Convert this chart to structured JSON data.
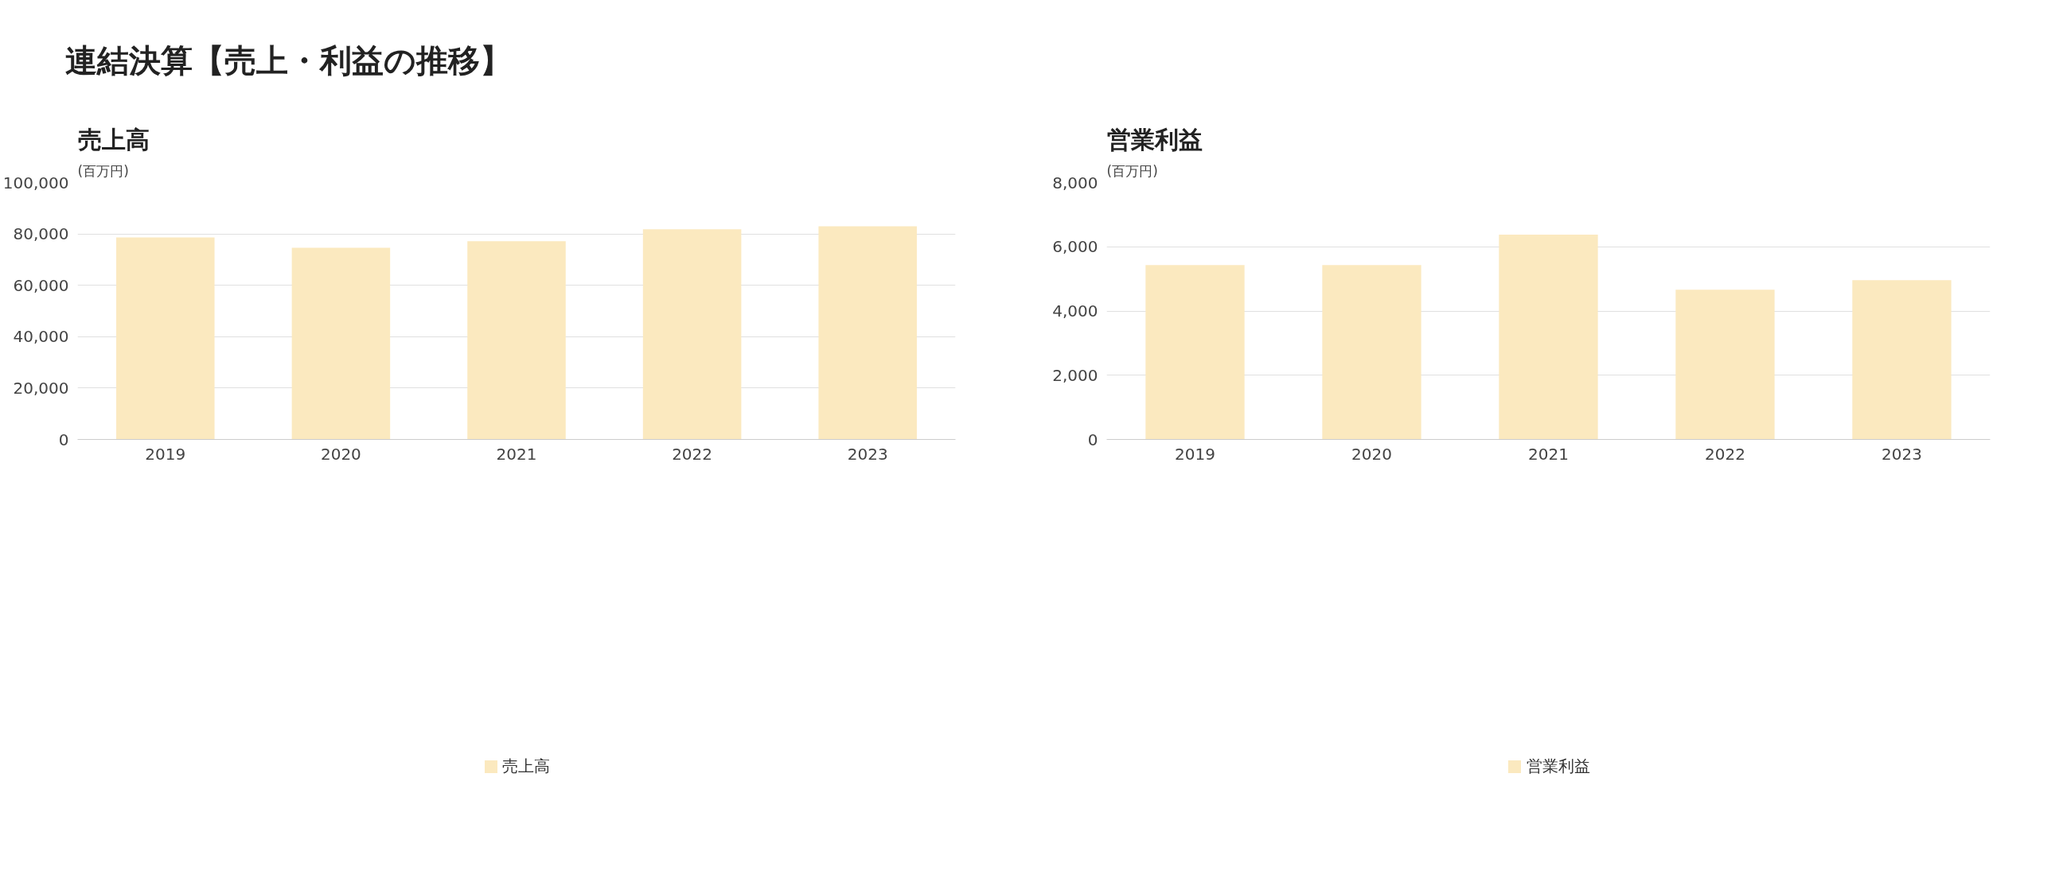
{
  "chart_data": [
    {
      "type": "other",
      "title": "連結決算【売上・利益の推移】"
    },
    {
      "type": "bar",
      "title": "売上高",
      "ylabel": "(百万円)",
      "categories": [
        "2019",
        "2020",
        "2021",
        "2022",
        "2023"
      ],
      "series": [
        {
          "name": "売上高",
          "color": "#fbe9bf",
          "values": [
            78600,
            74600,
            77200,
            81800,
            83000
          ]
        }
      ],
      "ylim": [
        0,
        100000
      ],
      "yticks": [
        {
          "value": 0,
          "label": "0"
        },
        {
          "value": 20000,
          "label": "20,000"
        },
        {
          "value": 40000,
          "label": "40,000"
        },
        {
          "value": 60000,
          "label": "60,000"
        },
        {
          "value": 80000,
          "label": "80,000"
        },
        {
          "value": 100000,
          "label": "100,000"
        }
      ],
      "grid": "y",
      "legend": "bottom"
    },
    {
      "type": "bar",
      "title": "営業利益",
      "ylabel": "(百万円)",
      "categories": [
        "2019",
        "2020",
        "2021",
        "2022",
        "2023"
      ],
      "series": [
        {
          "name": "営業利益",
          "color": "#fbe9bf",
          "values": [
            5430,
            5430,
            6380,
            4660,
            4960
          ]
        }
      ],
      "ylim": [
        0,
        8000
      ],
      "yticks": [
        {
          "value": 0,
          "label": "0"
        },
        {
          "value": 2000,
          "label": "2,000"
        },
        {
          "value": 4000,
          "label": "4,000"
        },
        {
          "value": 6000,
          "label": "6,000"
        },
        {
          "value": 8000,
          "label": "8,000"
        }
      ],
      "grid": "y",
      "legend": "bottom"
    }
  ]
}
